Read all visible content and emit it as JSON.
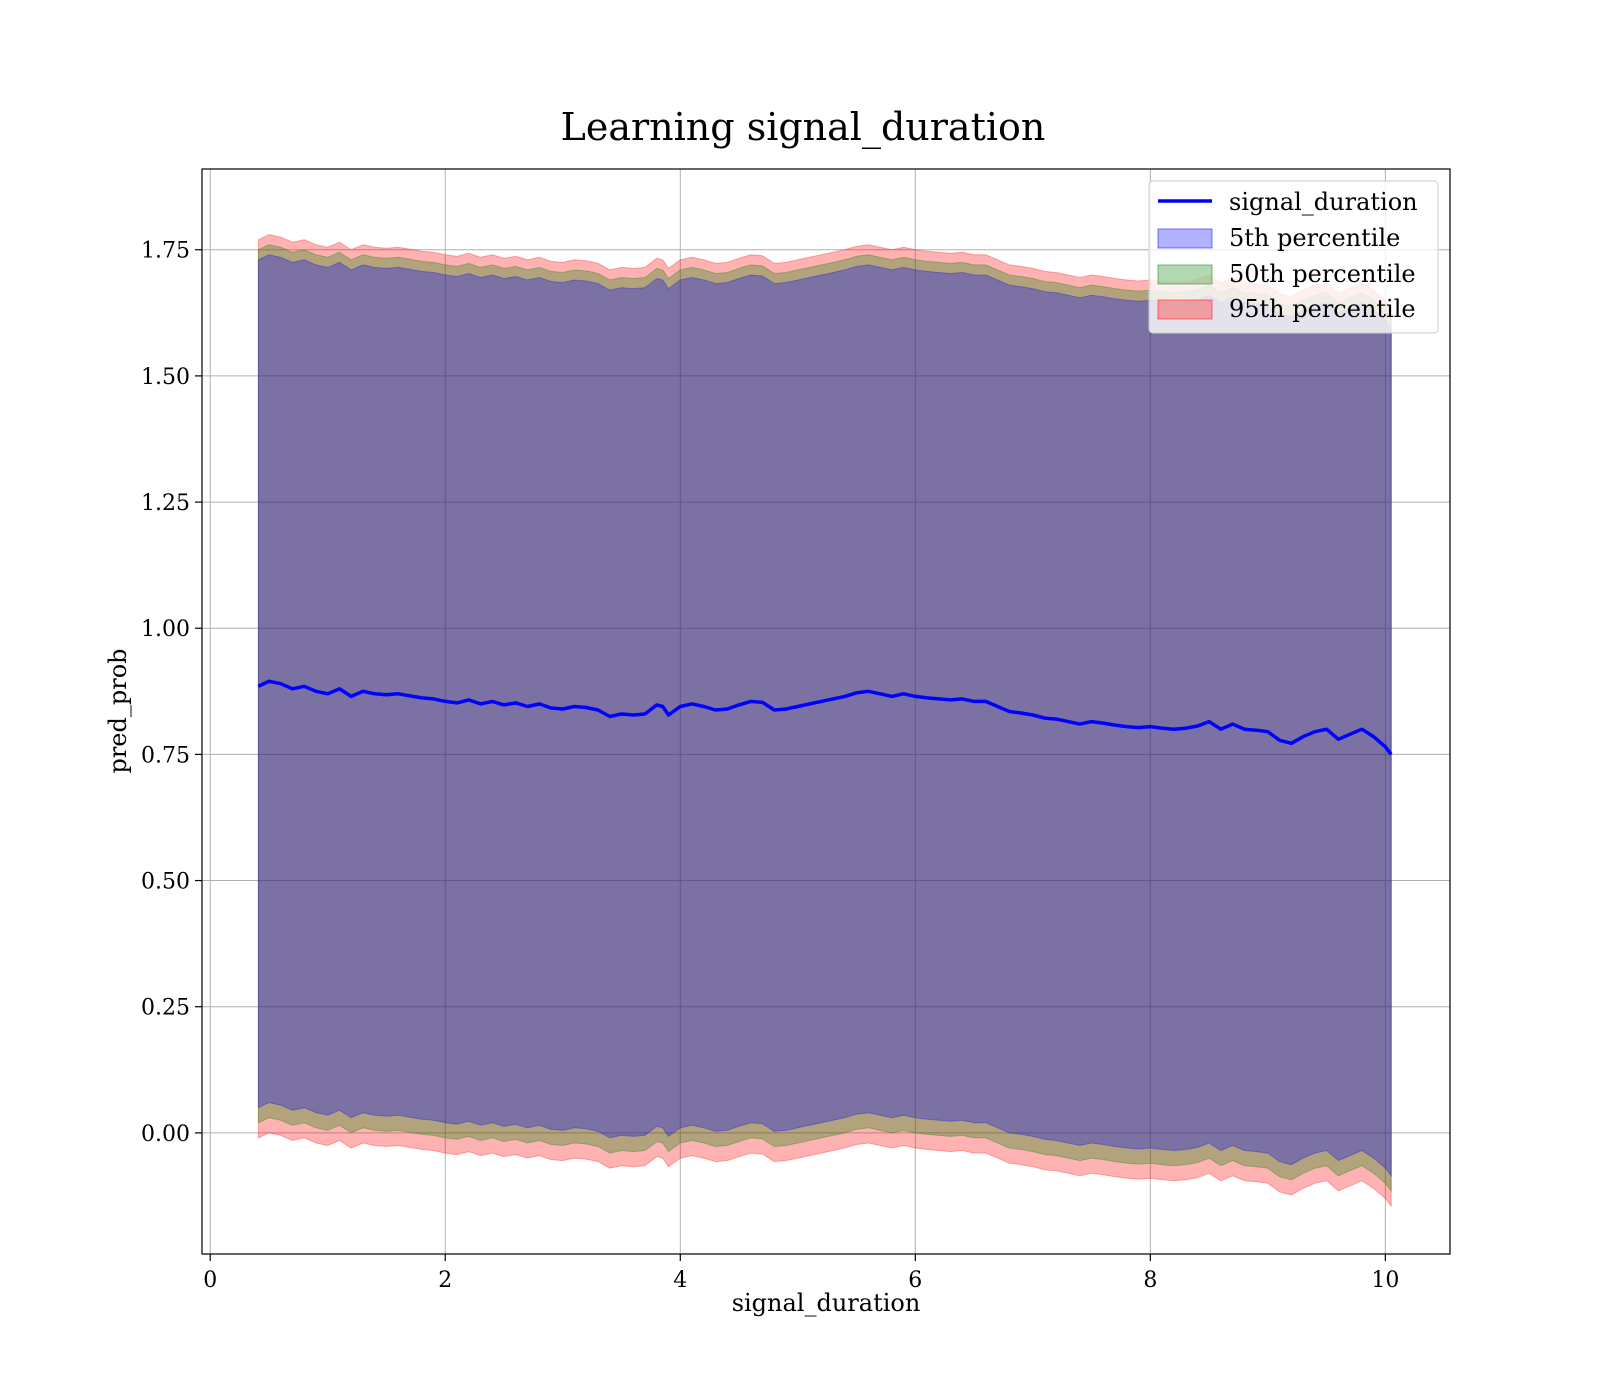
{
  "chart_data": {
    "type": "line",
    "title": "Learning signal_duration",
    "xlabel": "signal_duration",
    "ylabel": "pred_prob",
    "xlim": [
      -0.07,
      10.55
    ],
    "ylim": [
      -0.24,
      1.91
    ],
    "xticks": [
      0,
      2,
      4,
      6,
      8,
      10
    ],
    "xtick_labels": [
      "0",
      "2",
      "4",
      "6",
      "8",
      "10"
    ],
    "yticks": [
      0.0,
      0.25,
      0.5,
      0.75,
      1.0,
      1.25,
      1.5,
      1.75
    ],
    "ytick_labels": [
      "0.00",
      "0.25",
      "0.50",
      "0.75",
      "1.00",
      "1.25",
      "1.50",
      "1.75"
    ],
    "grid": true,
    "legend_position": "top-right",
    "series": [
      {
        "name": "signal_duration",
        "kind": "line",
        "color": "#0000ff",
        "x": [
          0.41,
          0.5,
          0.6,
          0.7,
          0.8,
          0.9,
          1.0,
          1.1,
          1.2,
          1.3,
          1.4,
          1.5,
          1.6,
          1.7,
          1.8,
          1.9,
          2.0,
          2.1,
          2.2,
          2.3,
          2.4,
          2.5,
          2.6,
          2.7,
          2.8,
          2.9,
          3.0,
          3.1,
          3.2,
          3.3,
          3.4,
          3.5,
          3.6,
          3.7,
          3.8,
          3.85,
          3.9,
          4.0,
          4.1,
          4.2,
          4.3,
          4.4,
          4.5,
          4.6,
          4.7,
          4.8,
          4.9,
          5.0,
          5.1,
          5.2,
          5.3,
          5.4,
          5.5,
          5.6,
          5.7,
          5.8,
          5.9,
          6.0,
          6.1,
          6.2,
          6.3,
          6.4,
          6.5,
          6.6,
          6.7,
          6.8,
          6.9,
          7.0,
          7.1,
          7.2,
          7.3,
          7.4,
          7.5,
          7.6,
          7.7,
          7.8,
          7.9,
          8.0,
          8.1,
          8.2,
          8.3,
          8.4,
          8.5,
          8.6,
          8.7,
          8.8,
          8.9,
          9.0,
          9.1,
          9.2,
          9.3,
          9.4,
          9.5,
          9.6,
          9.7,
          9.8,
          9.9,
          10.0,
          10.05
        ],
        "y": [
          0.885,
          0.895,
          0.89,
          0.88,
          0.885,
          0.875,
          0.87,
          0.88,
          0.865,
          0.875,
          0.87,
          0.868,
          0.87,
          0.866,
          0.862,
          0.86,
          0.855,
          0.852,
          0.858,
          0.85,
          0.855,
          0.848,
          0.852,
          0.845,
          0.85,
          0.842,
          0.84,
          0.845,
          0.843,
          0.838,
          0.825,
          0.83,
          0.828,
          0.83,
          0.848,
          0.845,
          0.828,
          0.845,
          0.85,
          0.845,
          0.838,
          0.84,
          0.848,
          0.855,
          0.853,
          0.838,
          0.84,
          0.845,
          0.85,
          0.855,
          0.86,
          0.865,
          0.872,
          0.875,
          0.87,
          0.865,
          0.87,
          0.865,
          0.862,
          0.86,
          0.858,
          0.86,
          0.855,
          0.855,
          0.845,
          0.835,
          0.832,
          0.828,
          0.822,
          0.82,
          0.815,
          0.81,
          0.815,
          0.812,
          0.808,
          0.805,
          0.803,
          0.805,
          0.802,
          0.8,
          0.802,
          0.806,
          0.815,
          0.8,
          0.81,
          0.8,
          0.798,
          0.795,
          0.778,
          0.772,
          0.785,
          0.795,
          0.8,
          0.78,
          0.79,
          0.8,
          0.785,
          0.765,
          0.75
        ]
      },
      {
        "name": "5th percentile",
        "kind": "band",
        "fill": "#0000ff",
        "opacity": 0.3,
        "upper_offset": 0.845,
        "lower_offset": 0.835
      },
      {
        "name": "50th percentile",
        "kind": "band",
        "fill": "#008000",
        "opacity": 0.3,
        "upper_offset": 0.865,
        "lower_offset": 0.865
      },
      {
        "name": "95th percentile",
        "kind": "band",
        "fill": "#ff0000",
        "opacity": 0.3,
        "upper_offset": 0.885,
        "lower_offset": 0.895
      }
    ]
  }
}
